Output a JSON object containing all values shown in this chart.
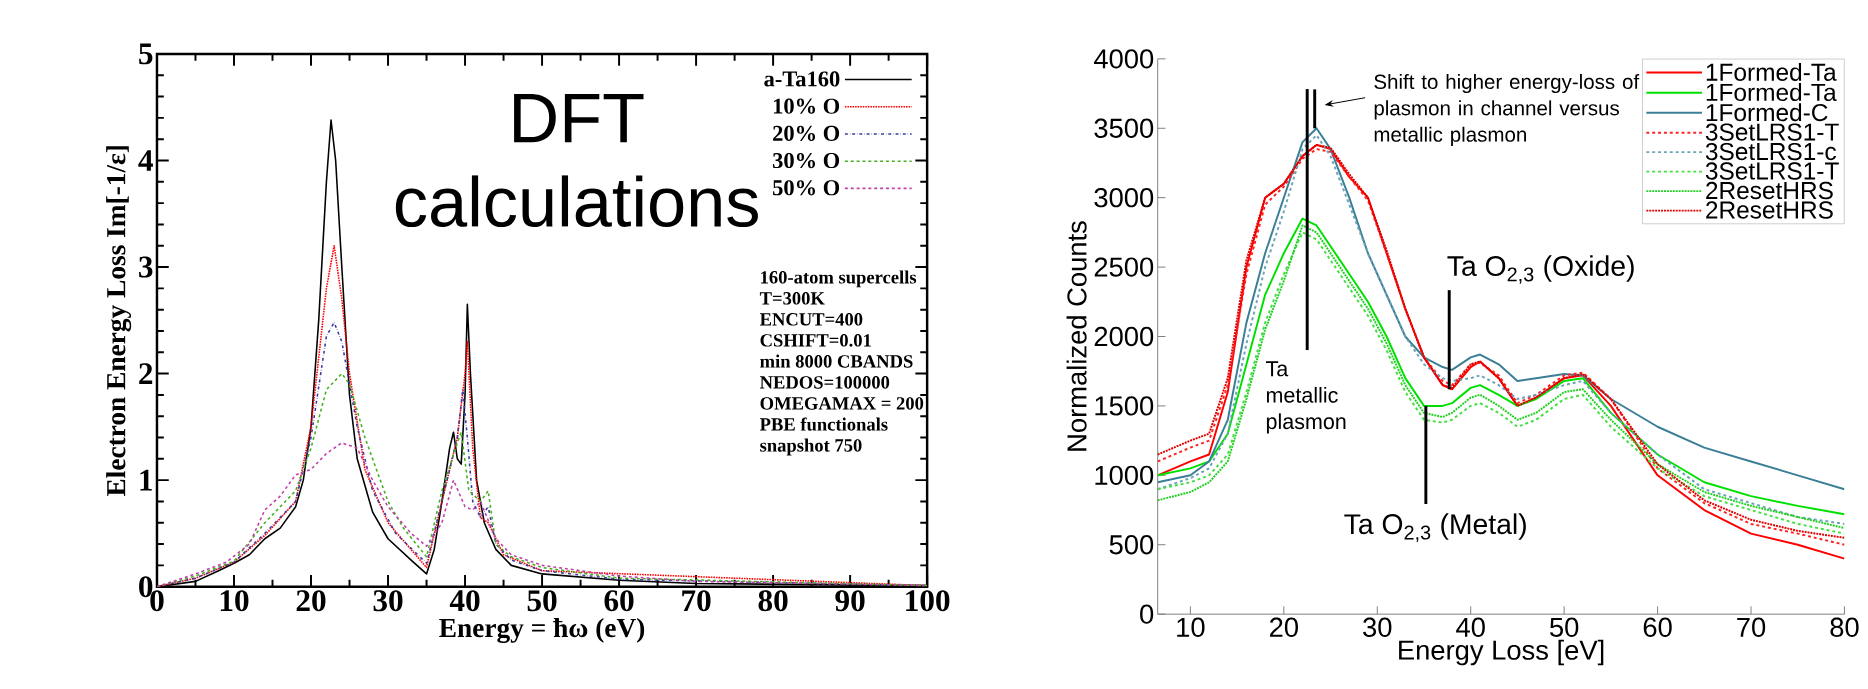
{
  "chart_data": [
    {
      "type": "line",
      "xlabel": "Energy = ħω (eV)",
      "ylabel": "Electron Energy Loss Im[-1/ε]",
      "xlim": [
        0,
        100
      ],
      "ylim": [
        0,
        5
      ],
      "xticks": [
        0,
        10,
        20,
        30,
        40,
        50,
        60,
        70,
        80,
        90,
        100
      ],
      "yticks": [
        0,
        1,
        2,
        3,
        4,
        5
      ],
      "legend": "top right",
      "annotations": [
        "DFT calculations",
        "160-atom supercells",
        "T=300K",
        "ENCUT=400",
        "CSHIFT=0.01",
        "min 8000 CBANDS",
        "NEDOS=100000",
        "OMEGAMAX = 200",
        "PBE functionals",
        "snapshot 750"
      ],
      "series": [
        {
          "name": "a-Ta160",
          "color": "#000000",
          "line_style": "solid",
          "x": [
            0,
            5,
            8,
            10,
            12,
            14,
            16,
            18,
            19,
            20,
            21,
            22,
            22.6,
            23.2,
            24,
            25,
            26,
            28,
            30,
            33,
            35,
            36,
            37,
            38,
            38.5,
            39,
            39.5,
            40,
            40.3,
            40.7,
            41.5,
            42.5,
            44,
            46,
            50,
            60,
            70,
            100
          ],
          "values": [
            0,
            0.05,
            0.15,
            0.22,
            0.3,
            0.45,
            0.55,
            0.75,
            1.0,
            1.5,
            2.5,
            3.8,
            4.38,
            4.0,
            3.0,
            1.8,
            1.2,
            0.7,
            0.45,
            0.25,
            0.12,
            0.35,
            0.8,
            1.3,
            1.45,
            1.2,
            1.15,
            1.8,
            2.65,
            2.0,
            1.0,
            0.6,
            0.35,
            0.2,
            0.12,
            0.06,
            0.03,
            0.01
          ]
        },
        {
          "name": "10% O",
          "color": "#ff0000",
          "line_style": "dotted",
          "x": [
            0,
            5,
            10,
            14,
            18,
            20,
            22,
            23,
            24,
            25,
            27,
            30,
            35,
            37,
            39,
            40,
            40.3,
            41,
            42,
            43,
            45,
            50,
            100
          ],
          "values": [
            0,
            0.08,
            0.23,
            0.48,
            0.8,
            1.5,
            2.8,
            3.2,
            2.7,
            2.0,
            1.1,
            0.6,
            0.18,
            0.8,
            1.4,
            2.0,
            2.3,
            1.3,
            0.65,
            0.6,
            0.3,
            0.15,
            0.01
          ]
        },
        {
          "name": "20% O",
          "color": "#3a3aa0",
          "line_style": "dashdot",
          "x": [
            0,
            5,
            10,
            14,
            18,
            20,
            22,
            23,
            24,
            26,
            28,
            31,
            35,
            37,
            39,
            39.7,
            40.3,
            41,
            42,
            43,
            44,
            46,
            50,
            60,
            100
          ],
          "values": [
            0,
            0.08,
            0.23,
            0.5,
            0.8,
            1.4,
            2.35,
            2.48,
            2.3,
            1.5,
            0.9,
            0.5,
            0.22,
            0.8,
            1.4,
            1.85,
            1.4,
            0.8,
            0.65,
            0.75,
            0.4,
            0.25,
            0.15,
            0.07,
            0.01
          ]
        },
        {
          "name": "30% O",
          "color": "#44b020",
          "line_style": "dashed",
          "x": [
            0,
            5,
            10,
            14,
            18,
            20,
            22,
            24,
            25,
            27,
            30,
            32,
            35,
            37,
            39,
            39.5,
            40.5,
            42,
            43,
            44,
            46,
            50,
            60,
            100
          ],
          "values": [
            0,
            0.1,
            0.24,
            0.6,
            0.9,
            1.3,
            1.85,
            2.0,
            1.9,
            1.4,
            0.8,
            0.55,
            0.28,
            0.9,
            1.35,
            1.45,
            0.9,
            0.8,
            0.9,
            0.4,
            0.28,
            0.18,
            0.08,
            0.01
          ]
        },
        {
          "name": "50% O",
          "color": "#c040a8",
          "line_style": "dashed",
          "x": [
            0,
            5,
            9,
            12,
            14,
            16,
            18,
            20,
            22,
            24,
            26,
            28,
            30,
            33,
            35,
            37,
            38.5,
            40,
            41,
            42,
            44,
            46,
            50,
            55,
            60,
            70,
            100
          ],
          "values": [
            0,
            0.12,
            0.23,
            0.4,
            0.72,
            0.85,
            1.05,
            1.1,
            1.25,
            1.35,
            1.3,
            1.0,
            0.75,
            0.5,
            0.38,
            0.6,
            1.0,
            0.75,
            0.72,
            0.8,
            0.45,
            0.3,
            0.2,
            0.15,
            0.1,
            0.05,
            0.01
          ]
        }
      ]
    },
    {
      "type": "line",
      "xlabel": "Energy Loss [eV]",
      "ylabel": "Normalized Counts",
      "xlim": [
        6.5,
        80
      ],
      "ylim": [
        0,
        4000
      ],
      "xticks": [
        10,
        20,
        30,
        40,
        50,
        60,
        70,
        80
      ],
      "yticks": [
        0,
        500,
        1000,
        1500,
        2000,
        2500,
        3000,
        3500,
        4000
      ],
      "legend": "top right",
      "x": [
        6.5,
        10,
        12,
        14,
        16,
        18,
        20,
        22,
        23.5,
        25,
        27,
        29,
        31,
        33,
        35,
        37,
        38,
        40,
        41,
        43,
        45,
        47,
        50,
        52,
        55,
        60,
        65,
        70,
        75,
        80
      ],
      "annotations": [
        "Shift to higher energy-loss of plasmon in channel versus metallic plasmon",
        {
          "text": "Ta metallic plasmon",
          "x": 22.5,
          "y": 3330
        },
        {
          "text": "Ta O$_{2,3}$ (Oxide)",
          "x": 37.7,
          "y": 1620
        },
        {
          "text": "Ta O$_{2,3}$ (Metal)",
          "x": 35.2,
          "y": 1500
        }
      ],
      "series": [
        {
          "name": "1Formed-Ta",
          "color": "#ff0000",
          "line_style": "solid",
          "values": [
            1000,
            1100,
            1150,
            1600,
            2500,
            3000,
            3100,
            3300,
            3380,
            3350,
            3150,
            3000,
            2600,
            2200,
            1850,
            1650,
            1620,
            1780,
            1820,
            1700,
            1500,
            1560,
            1700,
            1720,
            1500,
            1000,
            750,
            580,
            500,
            400
          ]
        },
        {
          "name": "1Formed-Ta",
          "color": "#00e000",
          "line_style": "solid",
          "values": [
            1000,
            1050,
            1100,
            1300,
            1800,
            2300,
            2600,
            2850,
            2800,
            2650,
            2450,
            2250,
            2000,
            1700,
            1500,
            1500,
            1520,
            1630,
            1650,
            1580,
            1500,
            1550,
            1680,
            1700,
            1450,
            1150,
            950,
            850,
            780,
            720
          ]
        },
        {
          "name": "1Formed-C",
          "color": "#3a7f96",
          "line_style": "solid",
          "values": [
            950,
            1000,
            1100,
            1400,
            2100,
            2600,
            3000,
            3400,
            3500,
            3350,
            3000,
            2600,
            2300,
            2000,
            1850,
            1780,
            1760,
            1850,
            1870,
            1800,
            1680,
            1700,
            1730,
            1720,
            1550,
            1350,
            1200,
            1100,
            1000,
            900
          ]
        },
        {
          "name": "3SetLRS1-T",
          "color": "#ff2020",
          "line_style": "dashed",
          "values": [
            1100,
            1200,
            1250,
            1650,
            2450,
            2950,
            3080,
            3280,
            3350,
            3330,
            3150,
            2980,
            2600,
            2200,
            1850,
            1680,
            1650,
            1800,
            1810,
            1720,
            1520,
            1580,
            1720,
            1740,
            1550,
            1050,
            800,
            650,
            580,
            500
          ]
        },
        {
          "name": "3SetLRS1-c",
          "color": "#6aa3b8",
          "line_style": "dashed",
          "values": [
            900,
            980,
            1050,
            1300,
            1950,
            2500,
            2900,
            3350,
            3450,
            3300,
            2950,
            2600,
            2300,
            2000,
            1800,
            1700,
            1680,
            1700,
            1720,
            1650,
            1550,
            1580,
            1650,
            1680,
            1450,
            1150,
            900,
            800,
            700,
            650
          ]
        },
        {
          "name": "3SetLRS1-T",
          "color": "#40e040",
          "line_style": "dashed",
          "values": [
            900,
            950,
            1000,
            1150,
            1600,
            2100,
            2450,
            2750,
            2700,
            2550,
            2350,
            2150,
            1900,
            1600,
            1400,
            1380,
            1400,
            1500,
            1520,
            1450,
            1350,
            1400,
            1550,
            1580,
            1350,
            1050,
            850,
            750,
            650,
            580
          ]
        },
        {
          "name": "2ResetHRS",
          "color": "#20d020",
          "line_style": "dotted",
          "values": [
            820,
            880,
            950,
            1100,
            1550,
            2050,
            2400,
            2800,
            2750,
            2600,
            2400,
            2200,
            1950,
            1650,
            1450,
            1420,
            1450,
            1560,
            1580,
            1500,
            1400,
            1450,
            1600,
            1620,
            1400,
            1080,
            880,
            780,
            700,
            620
          ]
        },
        {
          "name": "2ResetHRS",
          "color": "#e00000",
          "line_style": "dotted",
          "values": [
            1150,
            1250,
            1300,
            1700,
            2550,
            3000,
            3100,
            3300,
            3380,
            3360,
            3170,
            3000,
            2620,
            2200,
            1850,
            1650,
            1630,
            1800,
            1820,
            1700,
            1500,
            1560,
            1700,
            1730,
            1550,
            1080,
            820,
            680,
            600,
            550
          ]
        }
      ]
    }
  ]
}
